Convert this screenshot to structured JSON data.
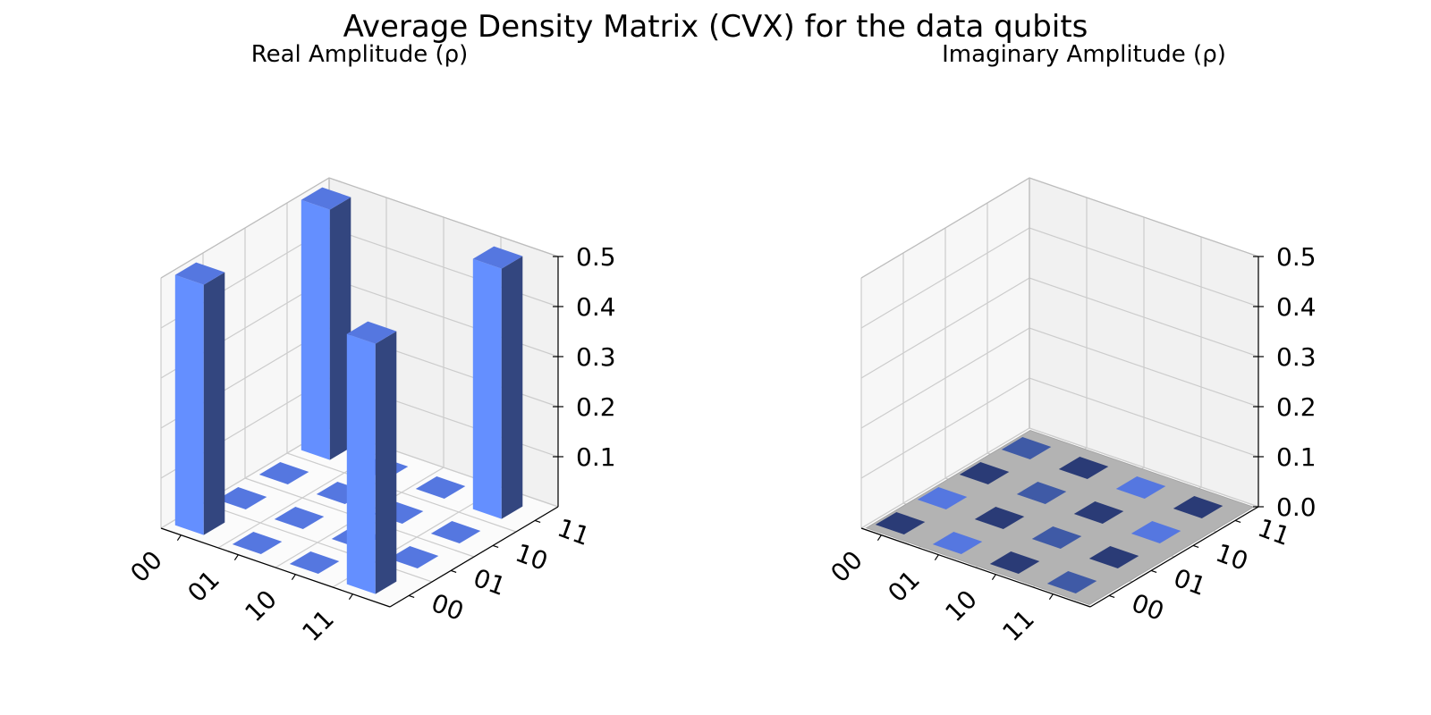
{
  "figure_title": "Average Density Matrix (CVX) for the data qubits",
  "colors": {
    "bar_front": "#648fff",
    "bar_side": "#33467f",
    "bar_top": "#5577e0",
    "pane_left": "#f7f7f7",
    "pane_back": "#f1f1f1",
    "pane_floor": "#fbfbfb",
    "grid": "#cccccc",
    "imag_floor": "#b3b3b3",
    "imag_tile_light": "#5577e0",
    "imag_tile_mid": "#3f5aa6",
    "imag_tile_dark": "#2a3b76"
  },
  "chart_data": [
    {
      "type": "bar3d",
      "title": "Real Amplitude (ρ)",
      "row_labels": [
        "00",
        "01",
        "10",
        "11"
      ],
      "col_labels": [
        "00",
        "01",
        "10",
        "11"
      ],
      "zticks": [
        "0.1",
        "0.2",
        "0.3",
        "0.4",
        "0.5"
      ],
      "zlim": [
        0,
        0.5
      ],
      "values": [
        [
          0.5,
          0.0,
          0.0,
          0.5
        ],
        [
          0.0,
          0.0,
          0.0,
          0.0
        ],
        [
          0.0,
          0.0,
          0.0,
          0.0
        ],
        [
          0.5,
          0.0,
          0.0,
          0.5
        ]
      ]
    },
    {
      "type": "bar3d",
      "title": "Imaginary Amplitude (ρ)",
      "row_labels": [
        "00",
        "01",
        "10",
        "11"
      ],
      "col_labels": [
        "00",
        "01",
        "10",
        "11"
      ],
      "zticks": [
        "0.0",
        "0.1",
        "0.2",
        "0.3",
        "0.4",
        "0.5"
      ],
      "zlim": [
        0,
        0.5
      ],
      "values": [
        [
          0.0,
          0.0,
          0.0,
          0.0
        ],
        [
          0.0,
          0.0,
          0.0,
          0.0
        ],
        [
          0.0,
          0.0,
          0.0,
          0.0
        ],
        [
          0.0,
          0.0,
          0.0,
          0.0
        ]
      ]
    }
  ]
}
